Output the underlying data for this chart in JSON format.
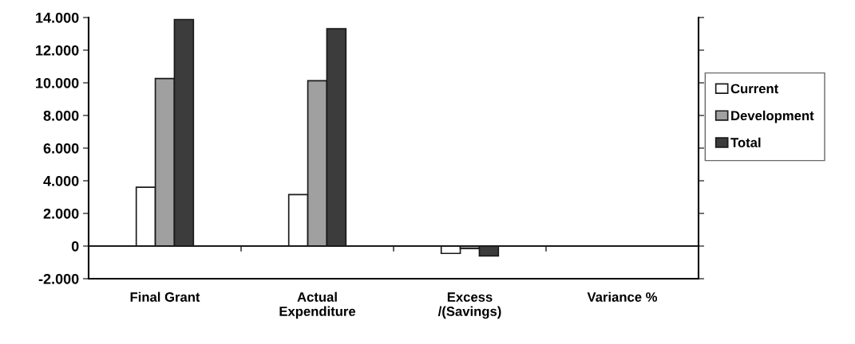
{
  "chart_data": {
    "type": "bar",
    "categories": [
      "Final Grant",
      "Actual\nExpenditure",
      "Excess\n/(Savings)",
      "Variance %"
    ],
    "series": [
      {
        "name": "Current",
        "color": "#ffffff",
        "values": [
          3600,
          3150,
          -450,
          null
        ]
      },
      {
        "name": "Development",
        "color": "#a0a0a0",
        "values": [
          10260,
          10130,
          -150,
          null
        ]
      },
      {
        "name": "Total",
        "color": "#3c3c3c",
        "values": [
          13880,
          13310,
          -600,
          null
        ]
      }
    ],
    "ylim": [
      -2000,
      14000
    ],
    "yticks": [
      {
        "value": -2000,
        "label": "-2.000"
      },
      0,
      {
        "value": 2000,
        "label": "2.000"
      },
      {
        "value": 4000,
        "label": "4.000"
      },
      {
        "value": 6000,
        "label": "6.000"
      },
      {
        "value": 8000,
        "label": "8.000"
      },
      {
        "value": 10000,
        "label": "10.000"
      },
      {
        "value": 12000,
        "label": "12.000"
      },
      {
        "value": 14000,
        "label": "14.000"
      }
    ],
    "legend": "right"
  }
}
